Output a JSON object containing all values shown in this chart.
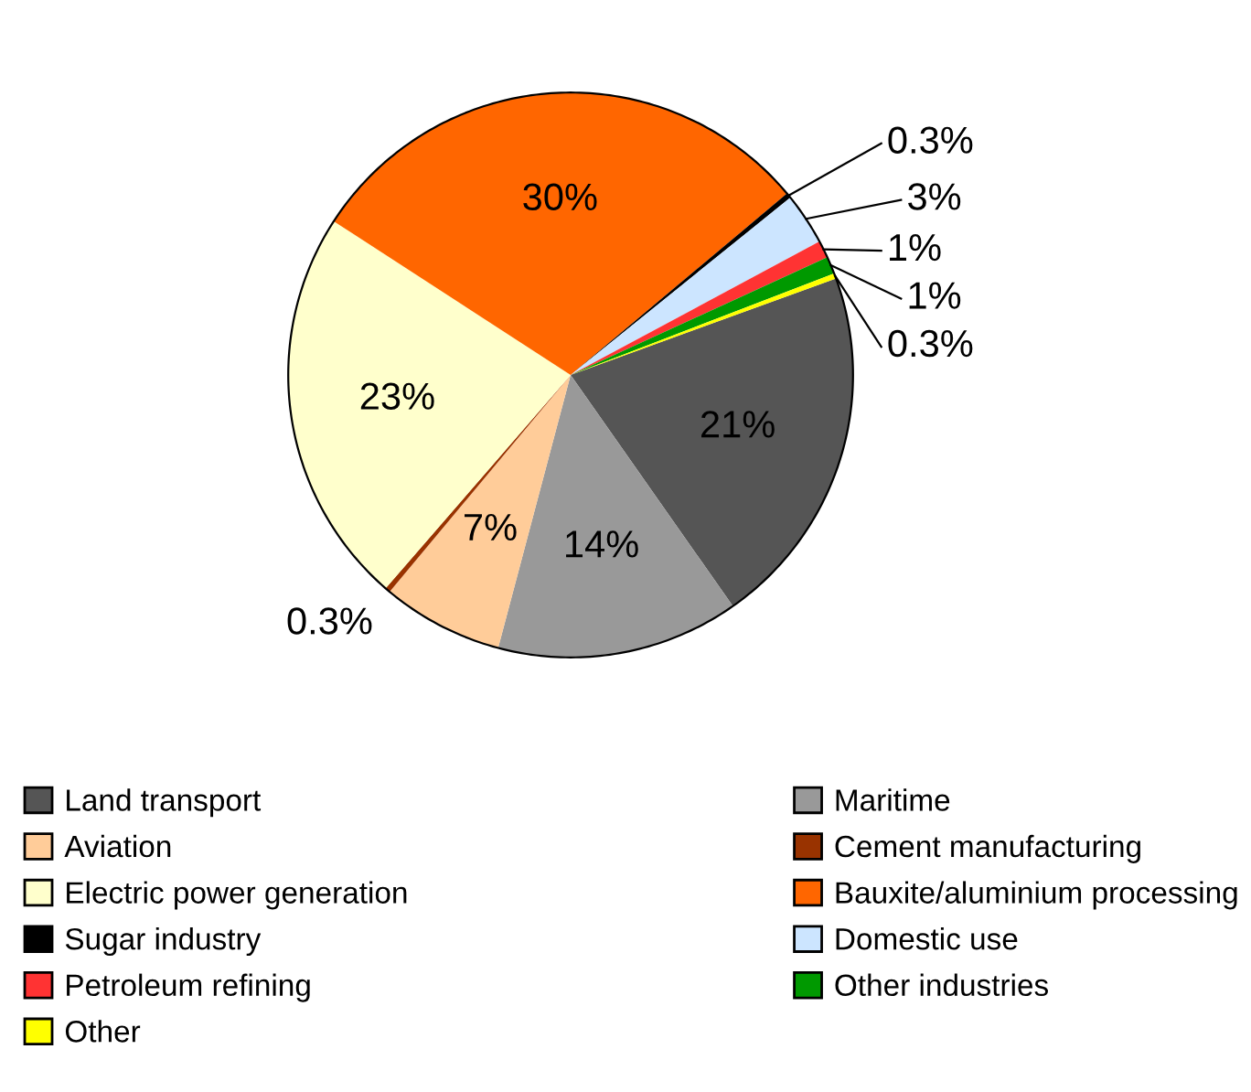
{
  "chart_data": {
    "type": "pie",
    "categories": [
      "Land transport",
      "Maritime",
      "Aviation",
      "Cement manufacturing",
      "Electric power generation",
      "Bauxite/aluminium processing",
      "Sugar industry",
      "Domestic use",
      "Petroleum refining",
      "Other industries",
      "Other"
    ],
    "values": [
      21,
      14,
      7,
      0.3,
      23,
      30,
      0.3,
      3,
      1,
      1,
      0.3
    ],
    "value_labels": [
      "21%",
      "14%",
      "7%",
      "0.3%",
      "23%",
      "30%",
      "0.3%",
      "3%",
      "1%",
      "1%",
      "0.3%"
    ],
    "colors": [
      "#555555",
      "#999999",
      "#ffcc99",
      "#993300",
      "#ffffcc",
      "#ff6600",
      "#000000",
      "#cce5ff",
      "#ff3333",
      "#009900",
      "#ffff00"
    ],
    "legend": "bottom"
  }
}
